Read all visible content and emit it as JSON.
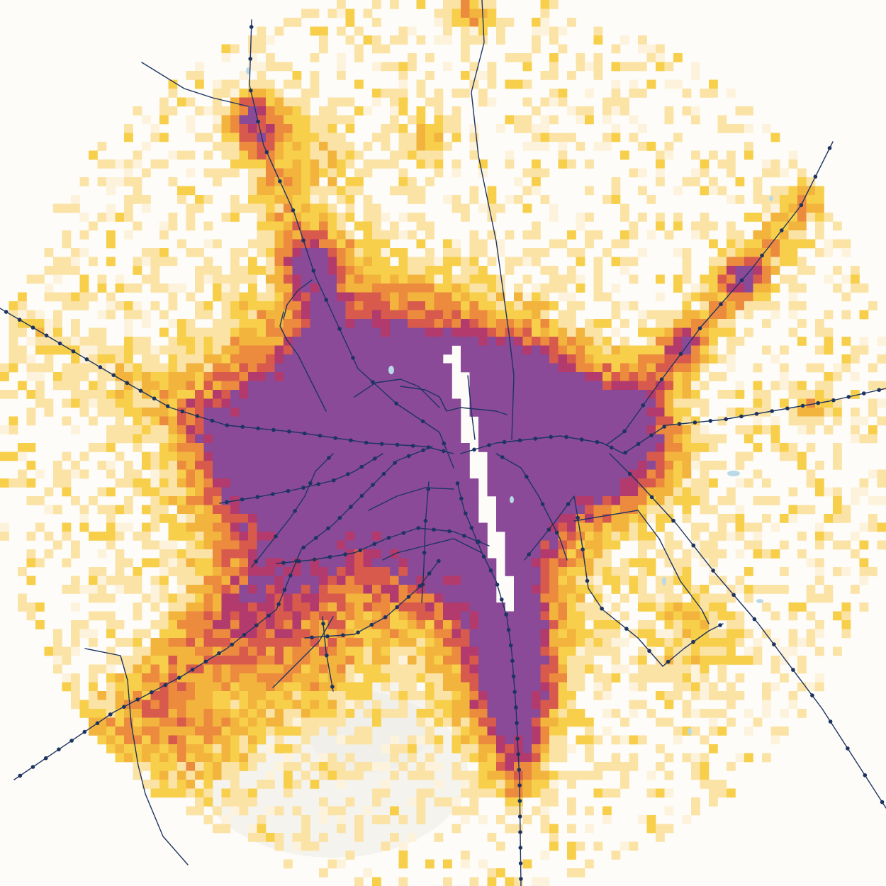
{
  "map": {
    "grid_columns": 100,
    "density_colors": [
      "#fdf3dc",
      "#fbe3a6",
      "#f7cf4a",
      "#f2b43d",
      "#ec8a3e",
      "#d85a4c",
      "#b23a6c",
      "#8a4a98"
    ],
    "background_color": "#fdfcf8",
    "rail_color": "#1d3461",
    "water_color": "#b9d9e6",
    "elements": {
      "density_layer": "population-density-grid",
      "rail_layer": "rail-lines",
      "station_layer": "rail-stations",
      "water_layer": "water-bodies",
      "relief_layer": "terrain-relief"
    }
  }
}
